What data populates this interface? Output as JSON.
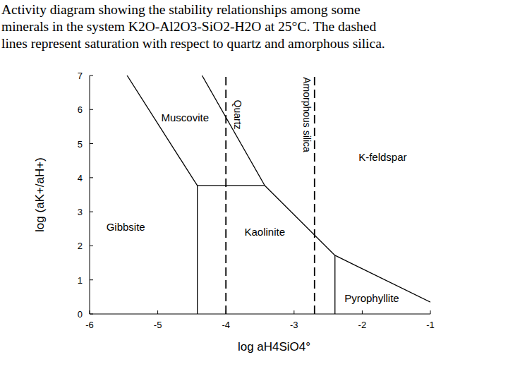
{
  "chart_data": {
    "type": "line",
    "title": [
      "Activity diagram showing the stability relationships among some",
      "minerals in the system K2O-Al2O3-SiO2-H2O at 25°C. The dashed",
      "lines represent saturation with respect to quartz and amorphous silica."
    ],
    "x_label": "log aH4SiO4°",
    "y_label": "log (aK+/aH+)",
    "xlim": [
      -6,
      -1
    ],
    "ylim": [
      0,
      7
    ],
    "xticks": [
      -6,
      -5,
      -4,
      -3,
      -2,
      -1
    ],
    "yticks": [
      0,
      1,
      2,
      3,
      4,
      5,
      6,
      7
    ],
    "grid": false,
    "series": [
      {
        "color": "#000000",
        "line_style": "solid",
        "x": [
          -5.45,
          -4.42
        ],
        "values": [
          7,
          3.77
        ]
      },
      {
        "color": "#000000",
        "line_style": "solid",
        "x": [
          -4.42,
          -4.42
        ],
        "values": [
          3.77,
          0
        ]
      },
      {
        "color": "#000000",
        "line_style": "solid",
        "x": [
          -4.42,
          -3.43
        ],
        "values": [
          3.77,
          3.77
        ]
      },
      {
        "color": "#000000",
        "line_style": "solid",
        "x": [
          -4.35,
          -3.43
        ],
        "values": [
          7,
          3.77
        ]
      },
      {
        "color": "#000000",
        "line_style": "solid",
        "x": [
          -3.43,
          -2.4
        ],
        "values": [
          3.77,
          1.72
        ]
      },
      {
        "color": "#000000",
        "line_style": "solid",
        "x": [
          -2.4,
          -2.4
        ],
        "values": [
          1.72,
          0
        ]
      },
      {
        "color": "#000000",
        "line_style": "solid",
        "x": [
          -2.4,
          -1
        ],
        "values": [
          1.72,
          0.35
        ]
      },
      {
        "color": "#000000",
        "line_style": "dashed",
        "x": [
          -4.0,
          -4.0
        ],
        "values": [
          0,
          7
        ]
      },
      {
        "color": "#000000",
        "line_style": "dashed",
        "x": [
          -2.7,
          -2.7
        ],
        "values": [
          0,
          7
        ]
      }
    ],
    "annotations": [
      {
        "text": "Muscovite",
        "x": -4.6,
        "y": 5.75
      },
      {
        "text": "K-feldspar",
        "x": -1.7,
        "y": 4.6
      },
      {
        "text": "Gibbsite",
        "x": -5.47,
        "y": 2.55
      },
      {
        "text": "Kaolinite",
        "x": -3.43,
        "y": 2.4
      },
      {
        "text": "Pyrophyllite",
        "x": -1.86,
        "y": 0.45
      }
    ],
    "line_labels": [
      {
        "text": "Quartz",
        "x": -3.88,
        "y": 5.85
      },
      {
        "text": "Amorphous silica",
        "x": -2.86,
        "y": 5.85
      }
    ]
  }
}
